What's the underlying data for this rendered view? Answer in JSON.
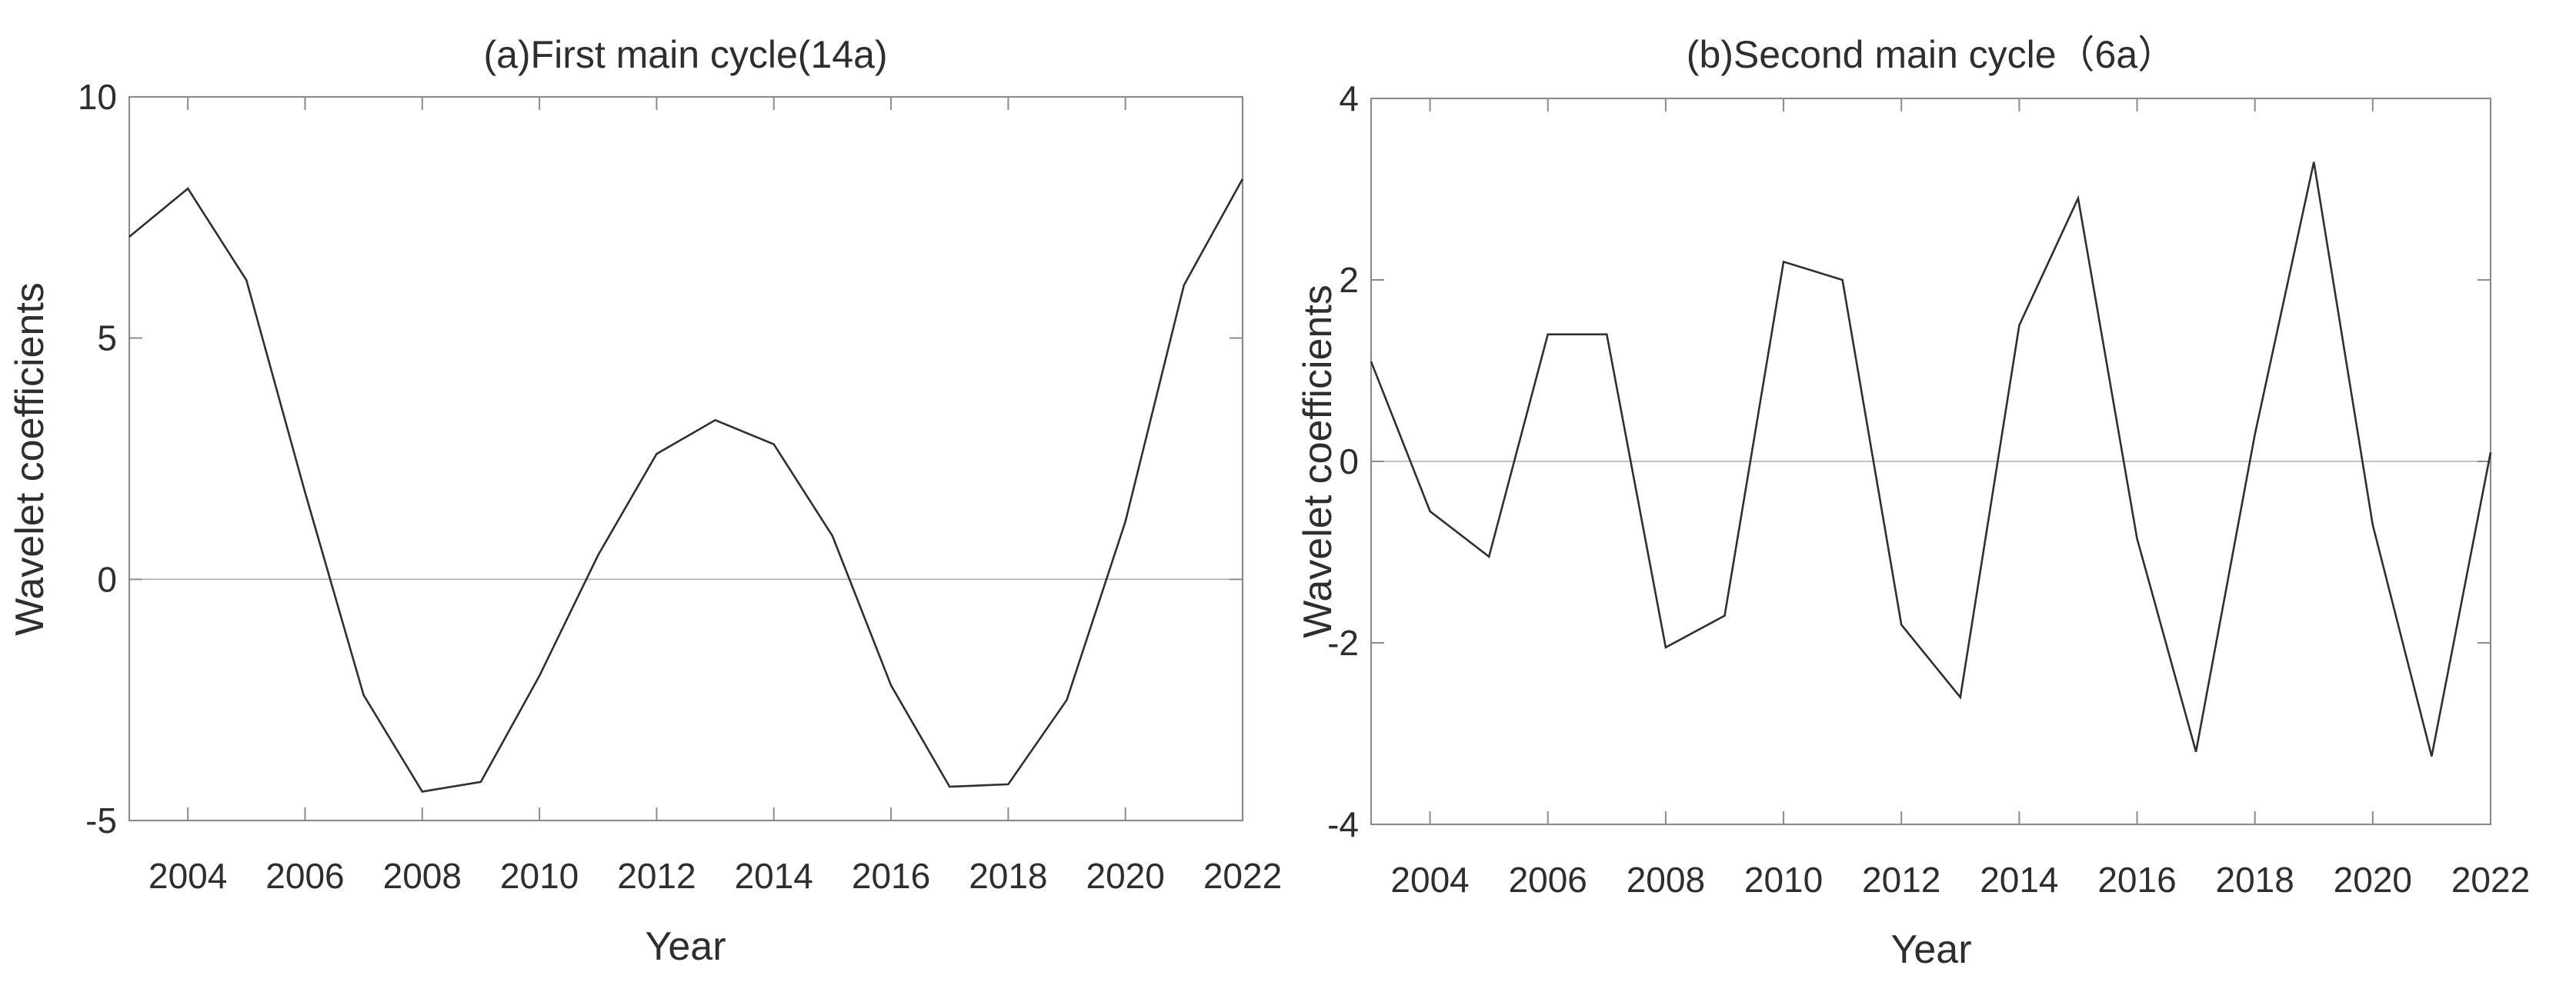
{
  "figure": {
    "background_color": "#ffffff",
    "text_color": "#2e2e2e",
    "axis_color": "#8c8c8c",
    "series_color": "#2f2f2f",
    "zero_line_color": "#aeaeae"
  },
  "chart_data": [
    {
      "id": "a",
      "type": "line",
      "title": "(a)First main cycle(14a)",
      "xlabel": "Year",
      "ylabel": "Wavelet coefficients",
      "x": [
        2003,
        2004,
        2005,
        2006,
        2007,
        2008,
        2009,
        2010,
        2011,
        2012,
        2013,
        2014,
        2015,
        2016,
        2017,
        2018,
        2019,
        2020,
        2021,
        2022
      ],
      "values": [
        7.1,
        8.1,
        6.2,
        1.8,
        -2.4,
        -4.4,
        -4.2,
        -2.0,
        0.5,
        2.6,
        3.3,
        2.8,
        0.9,
        -2.2,
        -4.3,
        -4.25,
        -2.5,
        1.2,
        6.1,
        8.3
      ],
      "xlim": [
        2003,
        2022
      ],
      "ylim": [
        -5,
        10
      ],
      "xticks": [
        2004,
        2006,
        2008,
        2010,
        2012,
        2014,
        2016,
        2018,
        2020,
        2022
      ],
      "yticks": [
        10,
        5,
        0,
        -5
      ],
      "zero_line": true,
      "grid": false,
      "legend": null
    },
    {
      "id": "b",
      "type": "line",
      "title": "(b)Second main cycle（6a）",
      "xlabel": "Year",
      "ylabel": "Wavelet coefficients",
      "x": [
        2003,
        2004,
        2005,
        2006,
        2007,
        2008,
        2009,
        2010,
        2011,
        2012,
        2013,
        2014,
        2015,
        2016,
        2017,
        2018,
        2019,
        2020,
        2021,
        2022
      ],
      "values": [
        1.1,
        -0.55,
        -1.05,
        1.4,
        1.4,
        -2.05,
        -1.7,
        2.2,
        2.0,
        -1.8,
        -2.6,
        1.5,
        2.9,
        -0.85,
        -3.2,
        0.3,
        3.3,
        -0.7,
        -3.25,
        0.1
      ],
      "xlim": [
        2003,
        2022
      ],
      "ylim": [
        -4,
        4
      ],
      "xticks": [
        2004,
        2006,
        2008,
        2010,
        2012,
        2014,
        2016,
        2018,
        2020,
        2022
      ],
      "yticks": [
        4,
        2,
        0,
        -2,
        -4
      ],
      "zero_line": true,
      "grid": false,
      "legend": null
    }
  ]
}
